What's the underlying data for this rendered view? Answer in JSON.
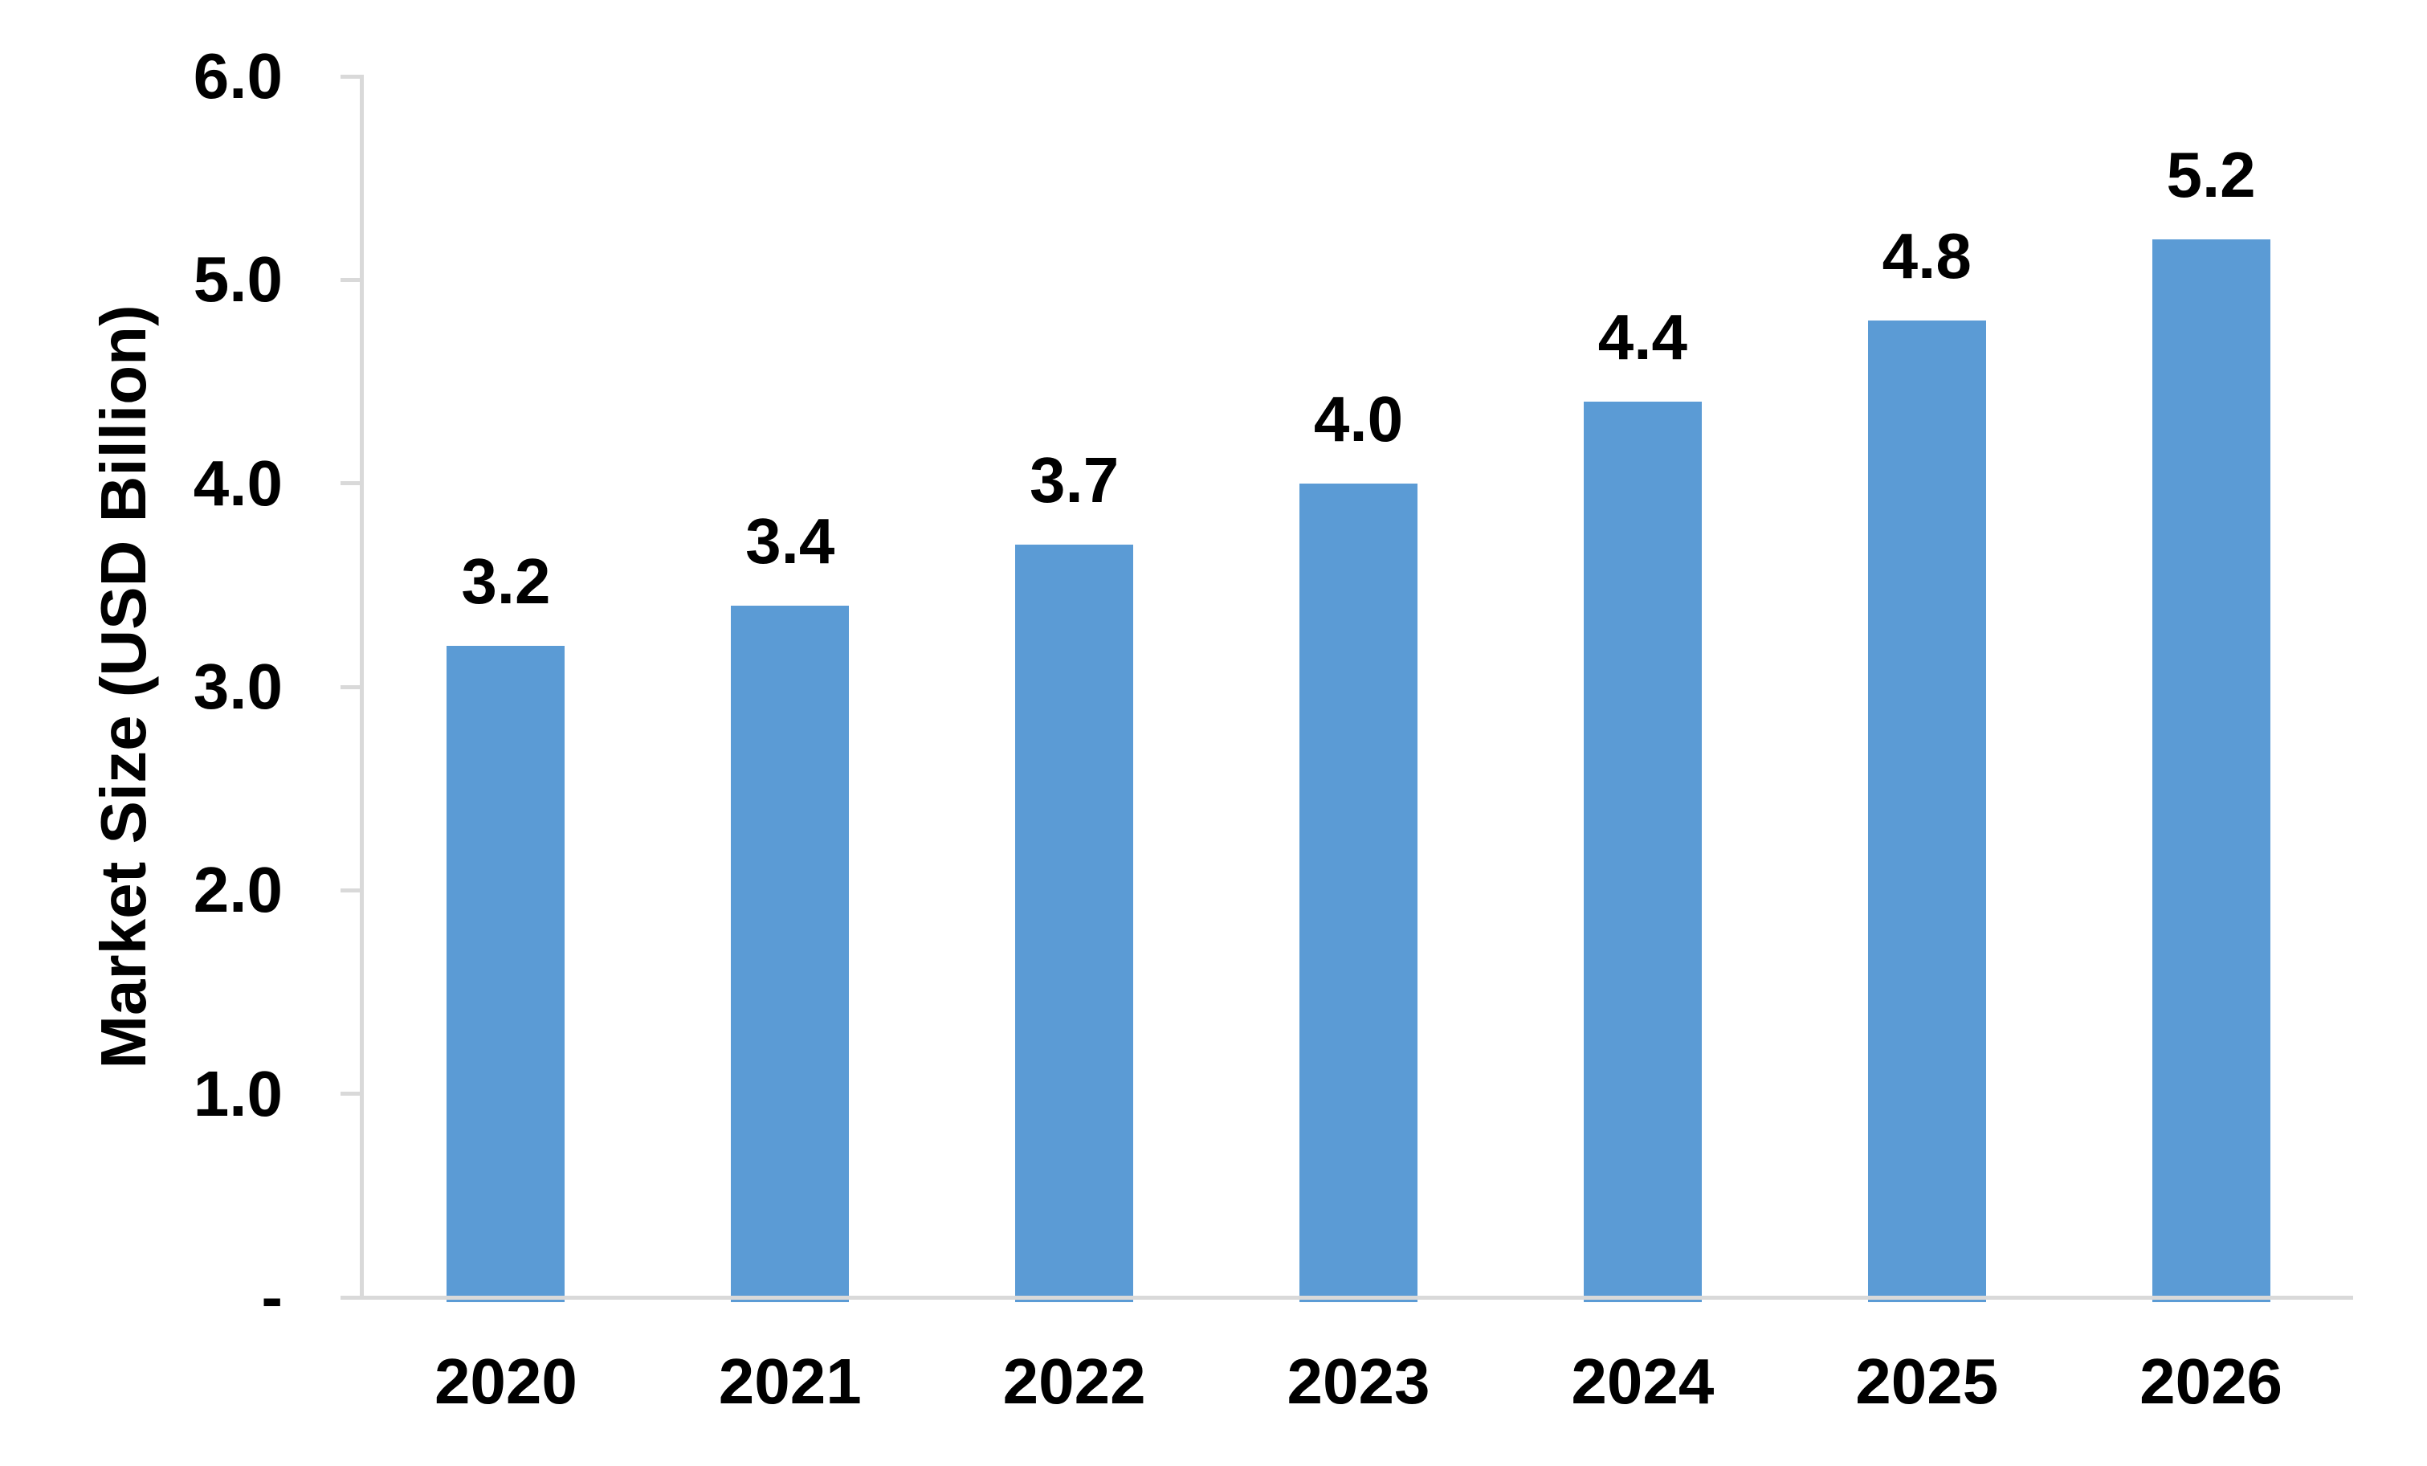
{
  "chart_data": {
    "type": "bar",
    "title": "",
    "xlabel": "",
    "ylabel": "Market Size (USD Billion)",
    "categories": [
      "2020",
      "2021",
      "2022",
      "2023",
      "2024",
      "2025",
      "2026"
    ],
    "values": [
      3.2,
      3.4,
      3.7,
      4.0,
      4.4,
      4.8,
      5.2
    ],
    "data_labels": [
      "3.2",
      "3.4",
      "3.7",
      "4.0",
      "4.4",
      "4.8",
      "5.2"
    ],
    "ylim": [
      0,
      6
    ],
    "ytick_values": [
      0,
      1,
      2,
      3,
      4,
      5,
      6
    ],
    "ytick_labels": [
      "-",
      "1.0",
      "2.0",
      "3.0",
      "4.0",
      "5.0",
      "6.0"
    ],
    "grid": false,
    "legend": "none",
    "data_label_position": "outside-end",
    "bar_color": "#5B9BD5",
    "axis_color": "#D9D9D9",
    "text_color": "#000000"
  }
}
